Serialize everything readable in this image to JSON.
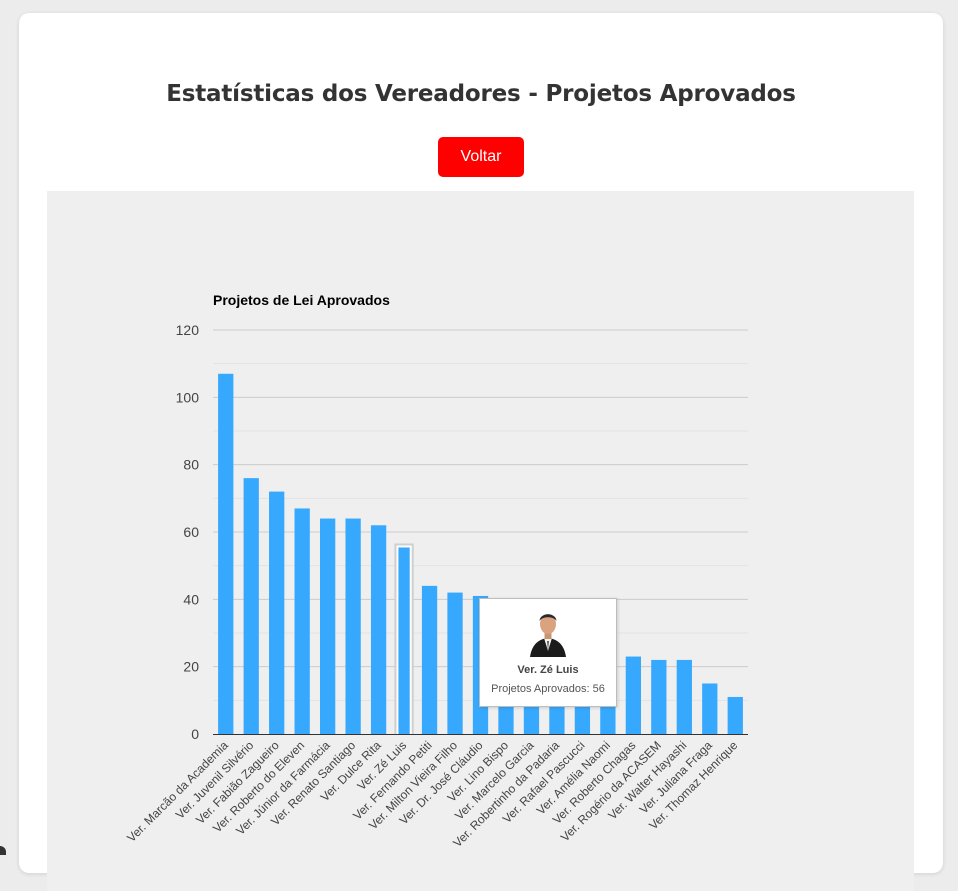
{
  "page": {
    "title": "Estatísticas dos Vereadores - Projetos Aprovados",
    "back_button": "Voltar"
  },
  "colors": {
    "bar": "#36a9fe",
    "button": "#ff0000",
    "panel": "#efefef"
  },
  "chart_data": {
    "type": "bar",
    "title": "Projetos de Lei Aprovados",
    "xlabel": "",
    "ylabel": "",
    "ylim": [
      0,
      120
    ],
    "yticks": [
      0,
      20,
      40,
      60,
      80,
      100,
      120
    ],
    "grid": true,
    "categories": [
      "Ver. Marcão da Academia",
      "Ver. Juvenil Silvério",
      "Ver. Fabião Zagueiro",
      "Ver. Roberto do Eleven",
      "Ver. Júnior da Farmácia",
      "Ver. Renato Santiago",
      "Ver. Dulce Rita",
      "Ver. Zé Luis",
      "Ver. Fernando Petiti",
      "Ver. Milton Vieira Filho",
      "Ver. Dr. José Cláudio",
      "Ver. Lino Bispo",
      "Ver. Marcelo Garcia",
      "Ver. Robertinho da Padaria",
      "Ver. Rafael Pascucci",
      "Ver. Amélia Naomi",
      "Ver. Roberto Chagas",
      "Ver. Rogério da ACASEM",
      "Ver. Walter Hayashi",
      "Ver. Juliana Fraga",
      "Ver. Thomaz Henrique"
    ],
    "values": [
      107,
      76,
      72,
      67,
      64,
      64,
      62,
      56,
      44,
      42,
      41,
      37,
      36,
      34,
      27,
      26,
      23,
      22,
      22,
      15,
      11
    ],
    "highlighted_index": 7,
    "tooltip": {
      "name": "Ver. Zé Luis",
      "value_text": "Projetos Aprovados: 56"
    }
  }
}
